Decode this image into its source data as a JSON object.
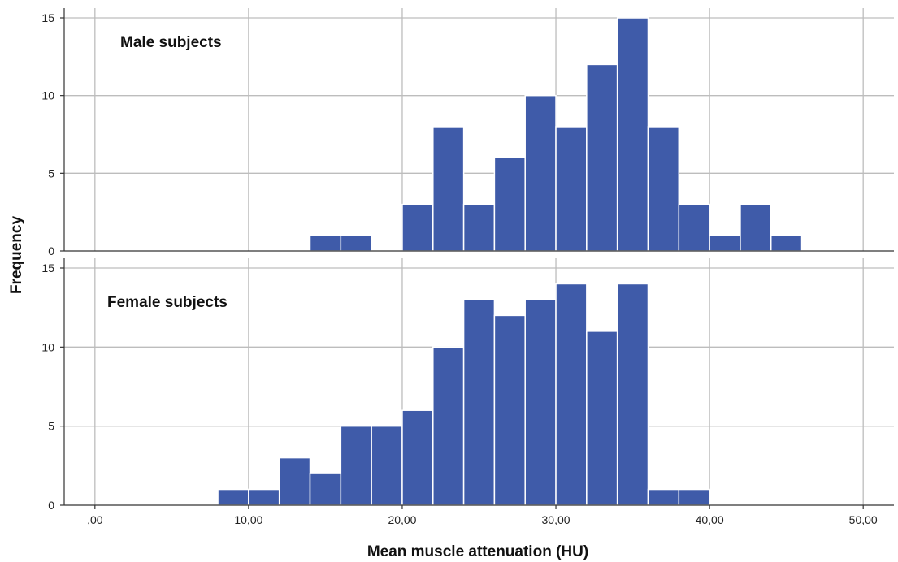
{
  "chart_data": {
    "type": "bar",
    "xlabel": "Mean muscle attenuation (HU)",
    "ylabel": "Frequency",
    "x_ticks": [
      ",00",
      "10,00",
      "20,00",
      "30,00",
      "40,00",
      "50,00"
    ],
    "xlim": [
      -2,
      52
    ],
    "bin_width": 2,
    "grid": true,
    "bar_color": "#3f5ba9",
    "panels": [
      {
        "label": "Male subjects",
        "ylim": [
          0,
          15
        ],
        "y_ticks": [
          "0",
          "5",
          "10",
          "15"
        ],
        "bins_start": [
          14,
          16,
          20,
          22,
          24,
          26,
          28,
          30,
          32,
          34,
          36,
          38,
          40,
          42,
          44
        ],
        "counts": [
          1,
          1,
          3,
          8,
          3,
          6,
          10,
          8,
          12,
          15,
          8,
          3,
          1,
          3,
          1
        ]
      },
      {
        "label": "Female subjects",
        "ylim": [
          0,
          15
        ],
        "y_ticks": [
          "0",
          "5",
          "10",
          "15"
        ],
        "bins_start": [
          8,
          10,
          12,
          14,
          16,
          18,
          20,
          22,
          24,
          26,
          28,
          30,
          32,
          34,
          36,
          38
        ],
        "counts": [
          1,
          1,
          3,
          2,
          5,
          5,
          6,
          10,
          13,
          12,
          13,
          14,
          11,
          14,
          1,
          1
        ]
      }
    ]
  }
}
